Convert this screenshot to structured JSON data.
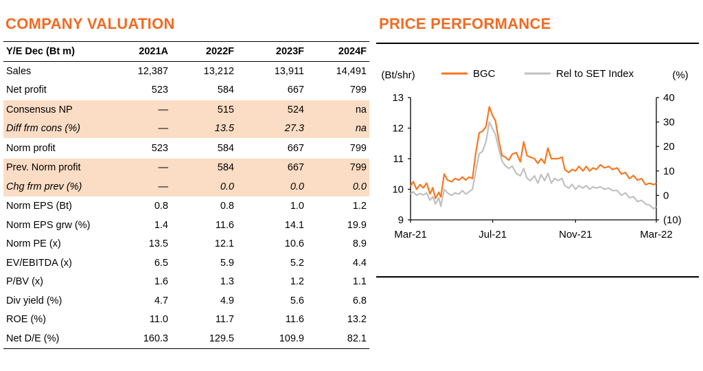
{
  "valuation": {
    "title": "COMPANY VALUATION",
    "header": [
      "Y/E Dec (Bt m)",
      "2021A",
      "2022F",
      "2023F",
      "2024F"
    ],
    "rows": [
      {
        "label": "Sales",
        "values": [
          "12,387",
          "13,212",
          "13,911",
          "14,491"
        ],
        "shaded": false,
        "italic": false
      },
      {
        "label": "Net profit",
        "values": [
          "523",
          "584",
          "667",
          "799"
        ],
        "shaded": false,
        "italic": false
      },
      {
        "label": "Consensus NP",
        "values": [
          "—",
          "515",
          "524",
          "na"
        ],
        "shaded": true,
        "italic": false
      },
      {
        "label": "Diff frm cons (%)",
        "values": [
          "—",
          "13.5",
          "27.3",
          "na"
        ],
        "shaded": true,
        "italic": true
      },
      {
        "label": "Norm profit",
        "values": [
          "523",
          "584",
          "667",
          "799"
        ],
        "shaded": false,
        "italic": false
      },
      {
        "label": "Prev. Norm profit",
        "values": [
          "—",
          "584",
          "667",
          "799"
        ],
        "shaded": true,
        "italic": false
      },
      {
        "label": "Chg frm prev (%)",
        "values": [
          "—",
          "0.0",
          "0.0",
          "0.0"
        ],
        "shaded": true,
        "italic": true
      },
      {
        "label": "Norm EPS (Bt)",
        "values": [
          "0.8",
          "0.8",
          "1.0",
          "1.2"
        ],
        "shaded": false,
        "italic": false
      },
      {
        "label": "Norm EPS grw (%)",
        "values": [
          "1.4",
          "11.6",
          "14.1",
          "19.9"
        ],
        "shaded": false,
        "italic": false
      },
      {
        "label": "Norm PE (x)",
        "values": [
          "13.5",
          "12.1",
          "10.6",
          "8.9"
        ],
        "shaded": false,
        "italic": false
      },
      {
        "label": "EV/EBITDA (x)",
        "values": [
          "6.5",
          "5.9",
          "5.2",
          "4.4"
        ],
        "shaded": false,
        "italic": false
      },
      {
        "label": "P/BV (x)",
        "values": [
          "1.6",
          "1.3",
          "1.2",
          "1.1"
        ],
        "shaded": false,
        "italic": false
      },
      {
        "label": "Div yield (%)",
        "values": [
          "4.7",
          "4.9",
          "5.6",
          "6.8"
        ],
        "shaded": false,
        "italic": false
      },
      {
        "label": "ROE (%)",
        "values": [
          "11.0",
          "11.7",
          "11.6",
          "13.2"
        ],
        "shaded": false,
        "italic": false
      },
      {
        "label": "Net D/E (%)",
        "values": [
          "160.3",
          "129.5",
          "109.9",
          "82.1"
        ],
        "shaded": false,
        "italic": false
      }
    ]
  },
  "colors": {
    "title": "#f26a21",
    "shade": "#fbdcc4",
    "bgc_line": "#f7761f",
    "rel_line": "#c0c0c0"
  },
  "chart_data": {
    "type": "line",
    "title": "PRICE PERFORMANCE",
    "ylabel_left": "(Bt/shr)",
    "ylabel_right": "(%)",
    "ylim_left": [
      9,
      13
    ],
    "ylim_right": [
      -10,
      40
    ],
    "yticks_left": [
      "13",
      "12",
      "11",
      "10",
      "9"
    ],
    "yticks_right": [
      "40",
      "30",
      "20",
      "10",
      "0",
      "(10)"
    ],
    "xtick_labels": [
      "Mar-21",
      "Jul-21",
      "Nov-21",
      "Mar-22"
    ],
    "xlim": [
      "2021-03-01",
      "2022-03-01"
    ],
    "legend_position": "top",
    "grid": false,
    "series": [
      {
        "name": "BGC",
        "axis": "left",
        "color": "#f7761f",
        "points": [
          [
            "2021-03-01",
            10.1
          ],
          [
            "2021-03-05",
            10.25
          ],
          [
            "2021-03-10",
            10.0
          ],
          [
            "2021-03-15",
            10.15
          ],
          [
            "2021-03-20",
            10.05
          ],
          [
            "2021-03-25",
            10.2
          ],
          [
            "2021-03-30",
            9.85
          ],
          [
            "2021-04-03",
            10.05
          ],
          [
            "2021-04-07",
            9.7
          ],
          [
            "2021-04-12",
            9.9
          ],
          [
            "2021-04-15",
            9.75
          ],
          [
            "2021-04-20",
            10.5
          ],
          [
            "2021-04-25",
            10.3
          ],
          [
            "2021-05-01",
            10.25
          ],
          [
            "2021-05-06",
            10.35
          ],
          [
            "2021-05-12",
            10.3
          ],
          [
            "2021-05-17",
            10.4
          ],
          [
            "2021-05-22",
            10.3
          ],
          [
            "2021-05-27",
            10.4
          ],
          [
            "2021-06-01",
            10.35
          ],
          [
            "2021-06-06",
            11.2
          ],
          [
            "2021-06-11",
            11.85
          ],
          [
            "2021-06-16",
            11.9
          ],
          [
            "2021-06-21",
            12.05
          ],
          [
            "2021-06-26",
            12.7
          ],
          [
            "2021-07-01",
            12.4
          ],
          [
            "2021-07-05",
            12.25
          ],
          [
            "2021-07-10",
            11.6
          ],
          [
            "2021-07-15",
            11.1
          ],
          [
            "2021-07-20",
            11.05
          ],
          [
            "2021-07-25",
            10.95
          ],
          [
            "2021-07-30",
            11.15
          ],
          [
            "2021-08-05",
            11.2
          ],
          [
            "2021-08-11",
            10.9
          ],
          [
            "2021-08-16",
            11.55
          ],
          [
            "2021-08-21",
            11.1
          ],
          [
            "2021-08-26",
            11.05
          ],
          [
            "2021-09-01",
            11.0
          ],
          [
            "2021-09-06",
            10.85
          ],
          [
            "2021-09-11",
            11.0
          ],
          [
            "2021-09-16",
            10.85
          ],
          [
            "2021-09-21",
            11.35
          ],
          [
            "2021-09-26",
            11.0
          ],
          [
            "2021-10-01",
            11.0
          ],
          [
            "2021-10-06",
            11.0
          ],
          [
            "2021-10-12",
            11.05
          ],
          [
            "2021-10-16",
            10.65
          ],
          [
            "2021-10-22",
            10.55
          ],
          [
            "2021-10-27",
            10.65
          ],
          [
            "2021-11-01",
            10.6
          ],
          [
            "2021-11-06",
            10.75
          ],
          [
            "2021-11-12",
            10.6
          ],
          [
            "2021-11-17",
            10.75
          ],
          [
            "2021-11-22",
            10.6
          ],
          [
            "2021-11-27",
            10.7
          ],
          [
            "2021-12-02",
            10.65
          ],
          [
            "2021-12-08",
            10.8
          ],
          [
            "2021-12-14",
            10.7
          ],
          [
            "2021-12-20",
            10.75
          ],
          [
            "2021-12-26",
            10.65
          ],
          [
            "2022-01-02",
            10.7
          ],
          [
            "2022-01-08",
            10.5
          ],
          [
            "2022-01-14",
            10.55
          ],
          [
            "2022-01-20",
            10.35
          ],
          [
            "2022-01-26",
            10.45
          ],
          [
            "2022-02-01",
            10.3
          ],
          [
            "2022-02-07",
            10.35
          ],
          [
            "2022-02-13",
            10.15
          ],
          [
            "2022-02-19",
            10.2
          ],
          [
            "2022-02-25",
            10.15
          ],
          [
            "2022-03-01",
            10.2
          ]
        ]
      },
      {
        "name": "Rel to SET Index",
        "axis": "right",
        "color": "#c0c0c0",
        "points": [
          [
            "2021-03-01",
            0.5
          ],
          [
            "2021-03-05",
            1.5
          ],
          [
            "2021-03-10",
            0.0
          ],
          [
            "2021-03-15",
            0.8
          ],
          [
            "2021-03-20",
            0.2
          ],
          [
            "2021-03-25",
            1.0
          ],
          [
            "2021-03-30",
            -2.0
          ],
          [
            "2021-04-03",
            -0.5
          ],
          [
            "2021-04-07",
            -3.5
          ],
          [
            "2021-04-12",
            -1.0
          ],
          [
            "2021-04-15",
            -4.5
          ],
          [
            "2021-04-20",
            2.5
          ],
          [
            "2021-04-25",
            1.0
          ],
          [
            "2021-05-01",
            0.0
          ],
          [
            "2021-05-06",
            1.0
          ],
          [
            "2021-05-12",
            0.5
          ],
          [
            "2021-05-17",
            2.0
          ],
          [
            "2021-05-22",
            0.5
          ],
          [
            "2021-05-27",
            1.5
          ],
          [
            "2021-06-01",
            2.5
          ],
          [
            "2021-06-06",
            10.0
          ],
          [
            "2021-06-11",
            17.0
          ],
          [
            "2021-06-16",
            18.0
          ],
          [
            "2021-06-21",
            22.0
          ],
          [
            "2021-06-26",
            30.0
          ],
          [
            "2021-07-01",
            27.0
          ],
          [
            "2021-07-05",
            25.0
          ],
          [
            "2021-07-10",
            19.0
          ],
          [
            "2021-07-15",
            14.0
          ],
          [
            "2021-07-20",
            12.0
          ],
          [
            "2021-07-25",
            11.0
          ],
          [
            "2021-07-30",
            12.0
          ],
          [
            "2021-08-05",
            9.0
          ],
          [
            "2021-08-11",
            8.0
          ],
          [
            "2021-08-16",
            11.0
          ],
          [
            "2021-08-21",
            7.0
          ],
          [
            "2021-08-26",
            6.0
          ],
          [
            "2021-09-01",
            8.0
          ],
          [
            "2021-09-06",
            5.0
          ],
          [
            "2021-09-11",
            8.5
          ],
          [
            "2021-09-16",
            6.0
          ],
          [
            "2021-09-21",
            9.0
          ],
          [
            "2021-09-26",
            5.0
          ],
          [
            "2021-10-01",
            7.0
          ],
          [
            "2021-10-06",
            6.0
          ],
          [
            "2021-10-12",
            7.0
          ],
          [
            "2021-10-16",
            4.0
          ],
          [
            "2021-10-22",
            3.0
          ],
          [
            "2021-10-27",
            4.5
          ],
          [
            "2021-11-01",
            2.5
          ],
          [
            "2021-11-06",
            4.0
          ],
          [
            "2021-11-12",
            3.0
          ],
          [
            "2021-11-17",
            4.0
          ],
          [
            "2021-11-22",
            2.5
          ],
          [
            "2021-11-27",
            3.5
          ],
          [
            "2021-12-02",
            3.0
          ],
          [
            "2021-12-08",
            3.5
          ],
          [
            "2021-12-14",
            2.5
          ],
          [
            "2021-12-20",
            3.0
          ],
          [
            "2021-12-26",
            2.0
          ],
          [
            "2022-01-02",
            2.0
          ],
          [
            "2022-01-08",
            0.0
          ],
          [
            "2022-01-14",
            1.0
          ],
          [
            "2022-01-20",
            -1.0
          ],
          [
            "2022-01-26",
            -0.5
          ],
          [
            "2022-02-01",
            -2.5
          ],
          [
            "2022-02-07",
            -2.0
          ],
          [
            "2022-02-13",
            -3.5
          ],
          [
            "2022-02-19",
            -4.0
          ],
          [
            "2022-02-25",
            -5.5
          ],
          [
            "2022-03-01",
            -4.5
          ]
        ]
      }
    ]
  }
}
